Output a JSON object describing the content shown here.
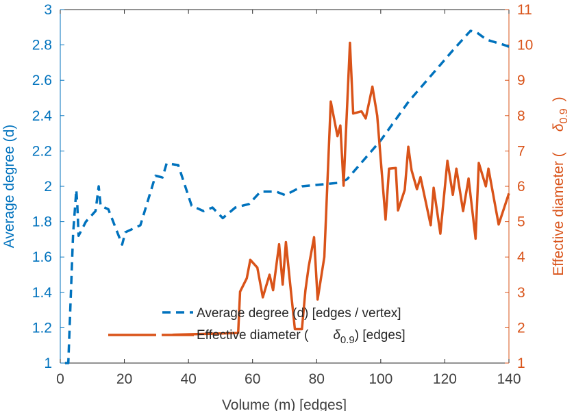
{
  "chart_data": {
    "type": "line",
    "xlabel": "Volume (m) [edges]",
    "ylabel_left": "Average degree (d)",
    "ylabel_right_prefix": "Effective diameter (",
    "ylabel_right_symbol": "δ",
    "ylabel_right_sub": "0.9",
    "ylabel_right_suffix": ")",
    "xlim": [
      0,
      140
    ],
    "ylim_left": [
      1,
      3
    ],
    "ylim_right": [
      1,
      11
    ],
    "xticks": [
      0,
      20,
      40,
      60,
      80,
      100,
      120,
      140
    ],
    "yticks_left": [
      "1",
      "1.2",
      "1.4",
      "1.6",
      "1.8",
      "2",
      "2.2",
      "2.4",
      "2.6",
      "2.8",
      "3"
    ],
    "yticks_right": [
      "1",
      "2",
      "3",
      "4",
      "5",
      "6",
      "7",
      "8",
      "9",
      "10",
      "11"
    ],
    "grid": false,
    "legend_placement": "bottom-center",
    "colors": {
      "left": "#0072BD",
      "right": "#D95319"
    },
    "series": [
      {
        "name": "Average degree (d) [edges / vertex]",
        "axis": "left",
        "style": "dashed",
        "points": [
          [
            1.5,
            1.0
          ],
          [
            2.5,
            1.0
          ],
          [
            4,
            1.73
          ],
          [
            5,
            1.98
          ],
          [
            5.3,
            1.9
          ],
          [
            5.7,
            1.72
          ],
          [
            8,
            1.8
          ],
          [
            11,
            1.86
          ],
          [
            12,
            2.0
          ],
          [
            12.6,
            1.89
          ],
          [
            15,
            1.87
          ],
          [
            19.3,
            1.67
          ],
          [
            20.3,
            1.74
          ],
          [
            25,
            1.78
          ],
          [
            29.7,
            2.06
          ],
          [
            31.9,
            2.05
          ],
          [
            33.2,
            2.13
          ],
          [
            36.8,
            2.12
          ],
          [
            41,
            1.89
          ],
          [
            44.7,
            1.86
          ],
          [
            47.5,
            1.88
          ],
          [
            50.7,
            1.82
          ],
          [
            54.6,
            1.88
          ],
          [
            58.9,
            1.9
          ],
          [
            62.5,
            1.97
          ],
          [
            67.4,
            1.97
          ],
          [
            70.2,
            1.95
          ],
          [
            75.5,
            2.0
          ],
          [
            87,
            2.02
          ],
          [
            89.5,
            2.04
          ],
          [
            100,
            2.26
          ],
          [
            108.7,
            2.48
          ],
          [
            123,
            2.78
          ],
          [
            128,
            2.88
          ],
          [
            130,
            2.87
          ],
          [
            133,
            2.83
          ],
          [
            138.5,
            2.8
          ],
          [
            140,
            2.79
          ]
        ]
      },
      {
        "name_prefix": "Effective diameter (",
        "name_symbol": "δ",
        "name_sub": "0.9",
        "name_suffix": ") [edges]",
        "axis": "right",
        "style": "solid",
        "points": [
          [
            35,
            1.8
          ],
          [
            55.5,
            1.85
          ],
          [
            56.1,
            3.02
          ],
          [
            58.2,
            3.4
          ],
          [
            59.3,
            3.92
          ],
          [
            61.5,
            3.7
          ],
          [
            63.2,
            2.86
          ],
          [
            65.3,
            3.5
          ],
          [
            66.4,
            3.06
          ],
          [
            68.3,
            4.36
          ],
          [
            69.4,
            3.22
          ],
          [
            70.4,
            4.42
          ],
          [
            71.7,
            3.26
          ],
          [
            73.2,
            1.96
          ],
          [
            75.4,
            1.96
          ],
          [
            76.5,
            3.06
          ],
          [
            77.5,
            3.72
          ],
          [
            79.2,
            4.56
          ],
          [
            80.3,
            2.8
          ],
          [
            82.4,
            4.0
          ],
          [
            84.4,
            8.4
          ],
          [
            86.5,
            7.42
          ],
          [
            87.4,
            7.72
          ],
          [
            88.4,
            6.02
          ],
          [
            90.4,
            10.06
          ],
          [
            91.4,
            8.06
          ],
          [
            94,
            8.12
          ],
          [
            95.3,
            7.92
          ],
          [
            97.4,
            8.82
          ],
          [
            98.9,
            8.0
          ],
          [
            101.5,
            5.06
          ],
          [
            102.6,
            6.5
          ],
          [
            104.7,
            6.52
          ],
          [
            105.4,
            5.32
          ],
          [
            107.5,
            5.9
          ],
          [
            108.6,
            7.12
          ],
          [
            109.6,
            6.46
          ],
          [
            111.3,
            5.92
          ],
          [
            112.4,
            6.26
          ],
          [
            115.6,
            4.9
          ],
          [
            116.5,
            5.96
          ],
          [
            118.6,
            4.66
          ],
          [
            120.8,
            6.72
          ],
          [
            122.5,
            5.76
          ],
          [
            123.6,
            6.5
          ],
          [
            125.7,
            5.3
          ],
          [
            127.4,
            6.22
          ],
          [
            129.6,
            4.52
          ],
          [
            130.6,
            6.66
          ],
          [
            132.8,
            6.0
          ],
          [
            133.6,
            6.5
          ],
          [
            136.8,
            4.92
          ],
          [
            140,
            5.8
          ]
        ]
      }
    ]
  }
}
